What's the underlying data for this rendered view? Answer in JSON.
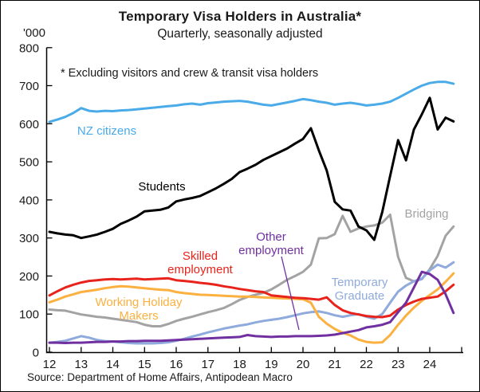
{
  "chart_data": {
    "type": "line",
    "title": "Temporary Visa Holders in Australia*",
    "subtitle": "Quarterly, seasonally adjusted",
    "ylabel": "'000",
    "footnote": "* Excluding visitors and crew & transit visa holders",
    "source": "Source: Department of Home Affairs, Antipodean Macro",
    "ylim": [
      0,
      800
    ],
    "yticks": [
      0,
      100,
      200,
      300,
      400,
      500,
      600,
      700,
      800
    ],
    "xticks": [
      12,
      13,
      14,
      15,
      16,
      17,
      18,
      19,
      20,
      21,
      22,
      23,
      24
    ],
    "x_start": 2012.0,
    "x_step_years": 0.25,
    "grid": "off",
    "legend": "inline-labels",
    "series": [
      {
        "name": "Bridging",
        "color": "#a3a3a3",
        "values": [
          112,
          110,
          109,
          104,
          99,
          96,
          93,
          91,
          88,
          85,
          82,
          79,
          72,
          68,
          68,
          74,
          82,
          88,
          93,
          99,
          105,
          110,
          116,
          126,
          137,
          145,
          151,
          156,
          165,
          177,
          190,
          200,
          211,
          230,
          299,
          300,
          310,
          358,
          316,
          325,
          330,
          333,
          340,
          361,
          250,
          195,
          186,
          192,
          218,
          253,
          306,
          330
        ]
      },
      {
        "name": "Temporary Graduate",
        "color": "#8faadc",
        "values": [
          25,
          27,
          30,
          36,
          42,
          38,
          32,
          29,
          28,
          26,
          24,
          23,
          23,
          23,
          24,
          26,
          30,
          35,
          41,
          46,
          52,
          57,
          62,
          66,
          70,
          73,
          78,
          82,
          85,
          88,
          92,
          97,
          102,
          105,
          107,
          103,
          97,
          93,
          97,
          100,
          93,
          88,
          100,
          130,
          159,
          175,
          186,
          193,
          215,
          230,
          222,
          236
        ]
      },
      {
        "name": "Working Holiday Makers",
        "color": "#fbb040",
        "values": [
          131,
          138,
          146,
          152,
          158,
          161,
          164,
          168,
          171,
          173,
          172,
          170,
          168,
          166,
          164,
          163,
          158,
          155,
          153,
          151,
          150,
          149,
          148,
          147,
          146,
          146,
          145,
          144,
          143,
          142,
          141,
          140,
          139,
          130,
          93,
          75,
          61,
          51,
          44,
          33,
          27,
          25,
          26,
          45,
          72,
          96,
          117,
          135,
          150,
          165,
          185,
          207
        ]
      },
      {
        "name": "Skilled employment",
        "color": "#e8231c",
        "values": [
          149,
          160,
          170,
          177,
          183,
          187,
          189,
          191,
          192,
          191,
          192,
          193,
          191,
          192,
          193,
          194,
          189,
          187,
          185,
          182,
          180,
          177,
          173,
          170,
          166,
          163,
          160,
          158,
          149,
          147,
          145,
          143,
          142,
          140,
          138,
          144,
          124,
          110,
          103,
          99,
          95,
          93,
          92,
          96,
          112,
          124,
          133,
          140,
          143,
          146,
          160,
          177
        ]
      },
      {
        "name": "Other employment",
        "color": "#7030a0",
        "values": [
          25,
          25,
          24,
          25,
          25,
          26,
          27,
          27,
          28,
          28,
          29,
          29,
          30,
          30,
          30,
          31,
          32,
          33,
          34,
          35,
          36,
          37,
          38,
          39,
          40,
          45,
          42,
          41,
          40,
          41,
          41,
          42,
          42,
          42,
          43,
          44,
          46,
          50,
          54,
          58,
          65,
          68,
          72,
          79,
          105,
          130,
          170,
          211,
          205,
          190,
          152,
          103
        ]
      },
      {
        "name": "Students",
        "color": "#000000",
        "values": [
          316,
          312,
          309,
          307,
          300,
          304,
          309,
          316,
          324,
          337,
          346,
          356,
          370,
          372,
          374,
          380,
          396,
          401,
          405,
          410,
          420,
          430,
          442,
          455,
          473,
          482,
          492,
          505,
          515,
          525,
          535,
          548,
          560,
          588,
          530,
          477,
          395,
          375,
          372,
          330,
          320,
          295,
          368,
          463,
          557,
          504,
          585,
          625,
          668,
          585,
          616,
          606
        ]
      },
      {
        "name": "NZ citizens",
        "color": "#4aabe8",
        "values": [
          605,
          611,
          618,
          628,
          641,
          634,
          632,
          634,
          633,
          635,
          636,
          638,
          640,
          642,
          644,
          646,
          648,
          651,
          653,
          650,
          654,
          656,
          658,
          659,
          660,
          658,
          654,
          650,
          648,
          652,
          656,
          660,
          665,
          662,
          658,
          655,
          650,
          653,
          655,
          652,
          648,
          650,
          653,
          658,
          668,
          679,
          690,
          700,
          707,
          710,
          710,
          705
        ]
      }
    ]
  }
}
